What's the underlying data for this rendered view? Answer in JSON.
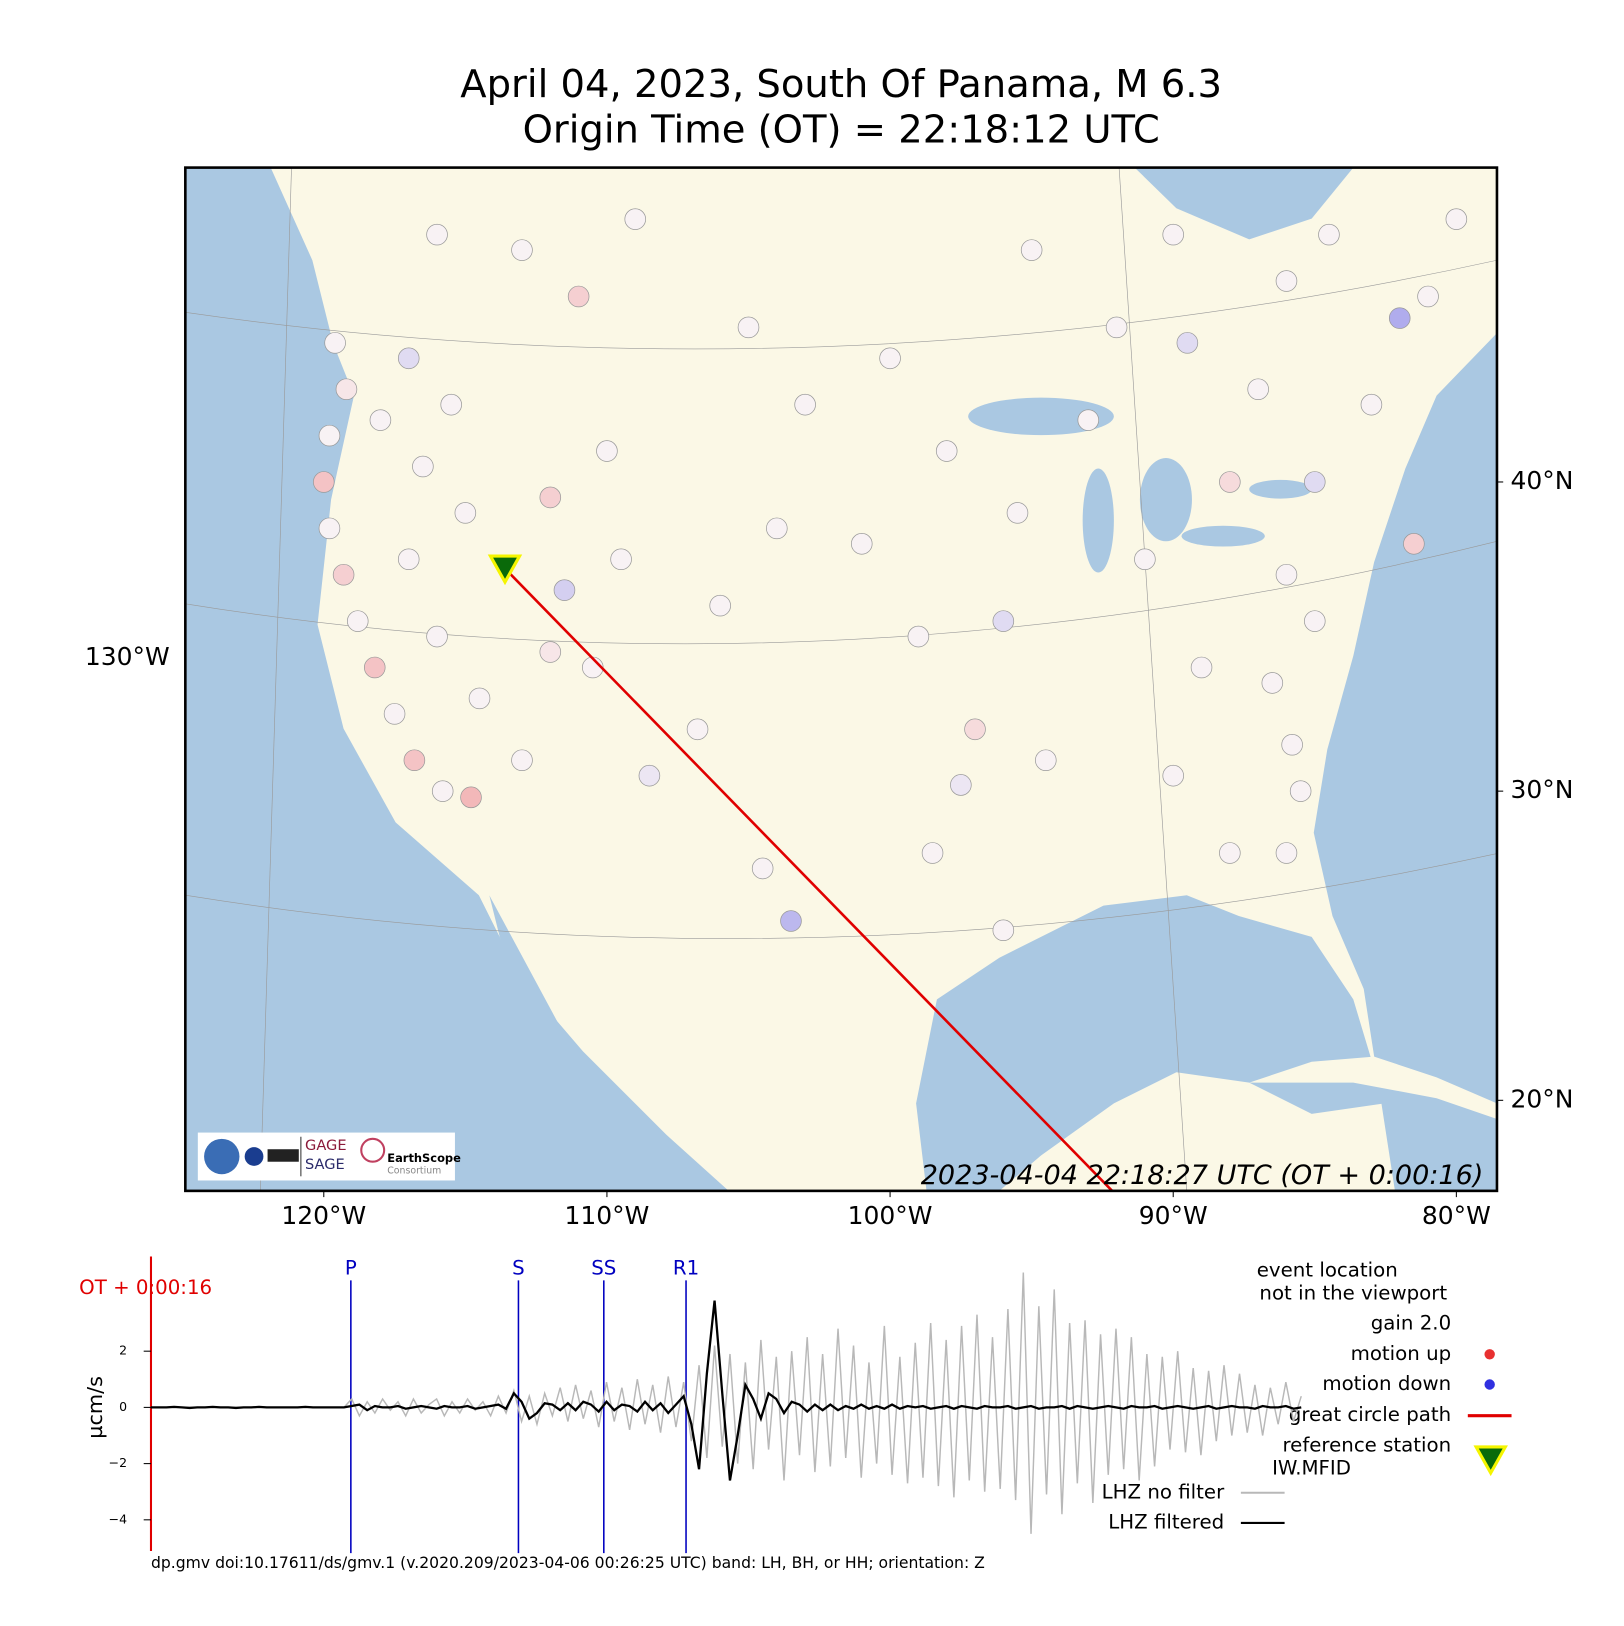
{
  "map": {
    "title": "April 04, 2023, South Of Panama, M 6.3",
    "subtitle": "Origin Time (OT) = 22:18:12 UTC",
    "timestamp": "2023-04-04 22:18:27 UTC (OT + 0:00:16)",
    "lon_ticks": [
      {
        "value": -120,
        "label": "120°W"
      },
      {
        "value": -110,
        "label": "110°W"
      },
      {
        "value": -100,
        "label": "100°W"
      },
      {
        "value": -90,
        "label": "90°W"
      },
      {
        "value": -80,
        "label": "80°W"
      }
    ],
    "lat_ticks": [
      {
        "value": 40,
        "label": "40°N"
      },
      {
        "value": 30,
        "label": "30°N"
      },
      {
        "value": 20,
        "label": "20°N"
      }
    ],
    "left_lon_tick": {
      "value": -130,
      "label": "130°W"
    },
    "logo": {
      "gage": "GAGE",
      "sage": "SAGE",
      "earthscope": "EarthScope",
      "consortium": "Consortium"
    },
    "reference_station": {
      "name": "IW.MFID",
      "lon": -113.6,
      "lat": 37.2
    },
    "stations": [
      [
        -119.6,
        44.5,
        0
      ],
      [
        -119.2,
        43.0,
        0.1
      ],
      [
        -119.8,
        41.5,
        0
      ],
      [
        -120.0,
        40.0,
        0.4
      ],
      [
        -119.8,
        38.5,
        0
      ],
      [
        -119.3,
        37.0,
        0.3
      ],
      [
        -118.8,
        35.5,
        0
      ],
      [
        -118.2,
        34.0,
        0.4
      ],
      [
        -117.5,
        32.5,
        0
      ],
      [
        -116.8,
        31.0,
        0.4
      ],
      [
        -115.8,
        30.0,
        0
      ],
      [
        -114.8,
        29.8,
        0.5
      ],
      [
        -118,
        42,
        0
      ],
      [
        -117,
        44,
        -0.2
      ],
      [
        -116.5,
        40.5,
        0
      ],
      [
        -117,
        37.5,
        0
      ],
      [
        -116,
        35,
        0
      ],
      [
        -115,
        39,
        0
      ],
      [
        -115.5,
        42.5,
        0
      ],
      [
        -114.5,
        33,
        0
      ],
      [
        -113,
        31,
        0
      ],
      [
        -112,
        34.5,
        0.1
      ],
      [
        -111.5,
        36.5,
        -0.3
      ],
      [
        -112,
        39.5,
        0.3
      ],
      [
        -110,
        41,
        0
      ],
      [
        -109.5,
        37.5,
        0
      ],
      [
        -110.5,
        34,
        0
      ],
      [
        -108.5,
        30.5,
        -0.1
      ],
      [
        -106.8,
        32,
        0
      ],
      [
        -106,
        36,
        0
      ],
      [
        -104,
        38.5,
        0
      ],
      [
        -103,
        42.5,
        0
      ],
      [
        -104.5,
        27.5,
        0
      ],
      [
        -103.5,
        25.8,
        -0.5
      ],
      [
        -116,
        48,
        0
      ],
      [
        -113,
        47.5,
        0
      ],
      [
        -111,
        46,
        0.3
      ],
      [
        -109,
        48.5,
        0
      ],
      [
        -105,
        45,
        0
      ],
      [
        -100,
        44,
        0
      ],
      [
        -98,
        41,
        0
      ],
      [
        -101,
        38,
        0
      ],
      [
        -99,
        35,
        0
      ],
      [
        -97,
        32,
        0.2
      ],
      [
        -97.5,
        30.2,
        -0.1
      ],
      [
        -96,
        35.5,
        -0.2
      ],
      [
        -94.5,
        31,
        0
      ],
      [
        -98.5,
        28,
        0
      ],
      [
        -96,
        25.5,
        0
      ],
      [
        -95.5,
        39,
        0
      ],
      [
        -93,
        42,
        0
      ],
      [
        -92,
        45,
        0
      ],
      [
        -91,
        37.5,
        0
      ],
      [
        -89,
        34,
        0
      ],
      [
        -90,
        30.5,
        0
      ],
      [
        -88,
        40,
        0.2
      ],
      [
        -87,
        43,
        0
      ],
      [
        -89.5,
        44.5,
        -0.2
      ],
      [
        -86,
        37,
        0
      ],
      [
        -86.5,
        33.5,
        0
      ],
      [
        -85.5,
        30,
        0
      ],
      [
        -85,
        35.5,
        0
      ],
      [
        -85,
        40,
        -0.2
      ],
      [
        -83,
        42.5,
        0
      ],
      [
        -82,
        45.3,
        -0.6
      ],
      [
        -86,
        46.5,
        0
      ],
      [
        -84.5,
        48,
        0
      ],
      [
        -81.5,
        38,
        0.3
      ],
      [
        -85.8,
        31.5,
        0
      ],
      [
        -88,
        28,
        0
      ],
      [
        -86,
        28,
        0
      ],
      [
        -80,
        48.5,
        0
      ],
      [
        -81,
        46,
        0
      ],
      [
        -90,
        48,
        0
      ],
      [
        -95,
        47.5,
        0
      ]
    ]
  },
  "chart_data": {
    "type": "line",
    "y_label": "µcm/s",
    "ot_label": "OT + 0:00:16",
    "phases": [
      "P",
      "S",
      "SS",
      "R1"
    ],
    "ylim": [
      -5.1,
      5.4
    ],
    "yticks": [
      {
        "value": -4,
        "label": "−4"
      },
      {
        "value": -2,
        "label": "−2"
      },
      0,
      2
    ],
    "series": [
      {
        "name": "LHZ no filter",
        "color": "#b8b8b8",
        "values": [
          0,
          0,
          0,
          0,
          0,
          0,
          0,
          0,
          0,
          0,
          0,
          0,
          0,
          0,
          0,
          0,
          0,
          0,
          0,
          0,
          0,
          0,
          0,
          0,
          0,
          0,
          0.3,
          -0.3,
          0.2,
          -0.2,
          0.3,
          -0.1,
          0.2,
          -0.3,
          0.3,
          -0.2,
          0.1,
          0.3,
          -0.3,
          0.2,
          -0.2,
          0.3,
          -0.1,
          0.2,
          -0.3,
          0.4,
          -0.2,
          0.6,
          -0.5,
          0.4,
          -0.6,
          0.5,
          -0.3,
          0.7,
          -0.5,
          0.8,
          -0.4,
          0.6,
          -0.7,
          0.9,
          -0.5,
          0.7,
          -0.8,
          1.0,
          -0.6,
          0.8,
          -0.9,
          1.1,
          -0.7,
          0.9,
          -1.2,
          1.5,
          -1.8,
          2.2,
          -1.4,
          1.9,
          -2.0,
          1.6,
          -2.2,
          2.4,
          -1.5,
          1.8,
          -2.6,
          2.0,
          -1.7,
          2.5,
          -2.3,
          1.9,
          -2.1,
          2.8,
          -1.8,
          2.2,
          -2.5,
          1.6,
          -2.0,
          2.9,
          -2.4,
          1.8,
          -2.7,
          2.3,
          -2.5,
          3.0,
          -2.8,
          2.4,
          -3.2,
          2.9,
          -2.6,
          3.3,
          -3.0,
          2.5,
          -2.9,
          3.5,
          -3.3,
          4.8,
          -4.5,
          3.6,
          -3.1,
          4.2,
          -3.8,
          3.0,
          -2.7,
          3.1,
          -3.4,
          2.6,
          -2.4,
          2.8,
          -2.2,
          2.5,
          -2.6,
          1.9,
          -2.1,
          1.8,
          -1.5,
          2.0,
          -1.6,
          1.4,
          -1.7,
          1.3,
          -1.2,
          1.5,
          -1.0,
          1.2,
          -0.9,
          0.8,
          -1.0,
          0.7,
          -0.6,
          0.9,
          -0.5,
          0.4
        ]
      },
      {
        "name": "LHZ filtered",
        "color": "#000000",
        "values": [
          0,
          0,
          0,
          0.02,
          0,
          -0.02,
          0,
          0,
          0.02,
          0,
          0,
          -0.02,
          0,
          0,
          0.02,
          0,
          0,
          0,
          0,
          0,
          0.02,
          0,
          0,
          0,
          0,
          0,
          0.05,
          0.1,
          -0.1,
          0.05,
          0,
          0,
          0.05,
          -0.05,
          0,
          0.05,
          0,
          -0.05,
          0.05,
          0,
          0,
          0.05,
          -0.05,
          0,
          0.05,
          0.1,
          -0.05,
          0.5,
          0.2,
          -0.4,
          -0.2,
          0.15,
          0.1,
          -0.1,
          0.15,
          -0.1,
          0.2,
          0.1,
          -0.15,
          0.2,
          -0.1,
          0.1,
          0.05,
          -0.15,
          0.2,
          -0.1,
          0.15,
          -0.2,
          0.1,
          0.4,
          -0.6,
          -2.2,
          1.2,
          3.8,
          0.5,
          -2.6,
          -1.0,
          0.8,
          0.3,
          -0.4,
          0.5,
          0.3,
          -0.2,
          0.2,
          0.1,
          -0.15,
          0.1,
          -0.1,
          0.1,
          -0.1,
          0.05,
          -0.05,
          0.1,
          -0.05,
          0.05,
          -0.05,
          0.1,
          -0.05,
          0.05,
          0,
          0.05,
          -0.05,
          0,
          0.05,
          -0.05,
          0.05,
          0,
          -0.05,
          0.05,
          0,
          0,
          0.05,
          -0.05,
          0,
          0.05,
          -0.05,
          0,
          0,
          0.05,
          -0.05,
          0.05,
          0,
          -0.05,
          0,
          0.05,
          0,
          -0.05,
          0.05,
          0,
          0,
          0.05,
          -0.05,
          0,
          0.05,
          0,
          -0.05,
          0,
          0.05,
          -0.05,
          0,
          0.05,
          0,
          0,
          -0.05,
          0.05,
          0,
          0,
          0.05,
          -0.05,
          0
        ]
      }
    ],
    "legend": {
      "event_line1": "event location",
      "event_line2": "not in the viewport",
      "gain": "gain  2.0",
      "motion_up": "motion up",
      "motion_down": "motion down",
      "path": "great circle path",
      "reference": "reference station"
    },
    "motion_colors": {
      "up": "#e83030",
      "down": "#3030e0"
    },
    "path_color": "#e00000",
    "footer": "dp.gmv doi:10.17611/ds/gmv.1 (v.2020.209/2023-04-06 00:26:25 UTC) band: LH, BH, or HH; orientation: Z"
  }
}
